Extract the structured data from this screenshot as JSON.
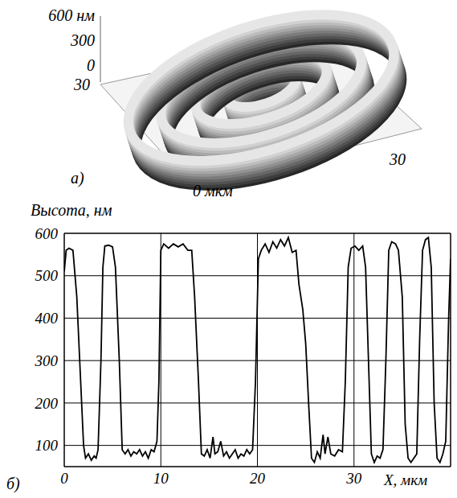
{
  "image": {
    "label": "a)",
    "z_ticks": [
      {
        "value": 600,
        "label": "600 нм"
      },
      300,
      0
    ],
    "z_lim": [
      0,
      600
    ],
    "x_ticks": [
      {
        "value": 0,
        "label": "0 мкм"
      },
      30
    ],
    "y_ticks": [
      30
    ]
  },
  "chart_data": {
    "type": "line",
    "label": "б)",
    "y_label": "Высота, нм",
    "x_label": "X, мкм",
    "color": "#000000",
    "grid": true,
    "xlim": [
      0,
      40
    ],
    "ylim": [
      50,
      600
    ],
    "xticks": [
      0,
      10,
      20,
      30
    ],
    "yticks": [
      100,
      200,
      300,
      400,
      500,
      600
    ],
    "x": [
      0,
      0.2,
      0.5,
      0.9,
      1.3,
      1.7,
      2.0,
      2.2,
      2.5,
      2.8,
      3.1,
      3.3,
      3.5,
      3.8,
      4.0,
      4.2,
      4.6,
      5.0,
      5.3,
      5.7,
      6.0,
      6.3,
      6.6,
      6.9,
      7.2,
      7.5,
      7.8,
      8.1,
      8.4,
      8.7,
      9.0,
      9.3,
      9.6,
      9.8,
      10.0,
      10.3,
      10.8,
      11.3,
      11.8,
      12.3,
      12.8,
      13.2,
      13.5,
      13.9,
      14.2,
      14.5,
      14.8,
      15.1,
      15.4,
      15.6,
      15.9,
      16.2,
      16.5,
      16.8,
      17.1,
      17.4,
      17.7,
      18.0,
      18.3,
      18.6,
      18.9,
      19.2,
      19.5,
      19.8,
      20.1,
      20.4,
      20.8,
      21.2,
      21.6,
      22.0,
      22.4,
      22.8,
      23.2,
      23.6,
      24.0,
      24.3,
      24.7,
      25.0,
      25.3,
      25.6,
      25.9,
      26.2,
      26.5,
      26.8,
      27.0,
      27.3,
      27.6,
      28.0,
      28.4,
      28.8,
      29.1,
      29.4,
      29.7,
      30.1,
      30.5,
      30.9,
      31.2,
      31.5,
      31.8,
      32.1,
      32.4,
      32.7,
      33.0,
      33.3,
      33.6,
      33.9,
      34.3,
      34.6,
      35.0,
      35.3,
      35.6,
      35.9,
      36.2,
      36.5,
      36.8,
      37.1,
      37.4,
      37.7,
      38.0,
      38.3,
      38.6,
      38.9,
      39.2,
      39.5,
      39.8,
      40.0
    ],
    "values": [
      510,
      560,
      565,
      560,
      450,
      250,
      100,
      70,
      80,
      65,
      75,
      70,
      90,
      300,
      520,
      570,
      572,
      568,
      520,
      300,
      90,
      80,
      90,
      75,
      85,
      80,
      90,
      75,
      85,
      70,
      90,
      85,
      110,
      250,
      560,
      575,
      565,
      575,
      568,
      575,
      560,
      560,
      450,
      250,
      80,
      75,
      90,
      70,
      120,
      80,
      85,
      110,
      75,
      85,
      70,
      80,
      90,
      70,
      80,
      75,
      90,
      80,
      90,
      250,
      540,
      560,
      575,
      555,
      580,
      565,
      585,
      570,
      590,
      555,
      560,
      480,
      420,
      340,
      200,
      70,
      60,
      85,
      70,
      125,
      80,
      120,
      80,
      75,
      90,
      85,
      250,
      520,
      565,
      570,
      560,
      570,
      520,
      300,
      80,
      60,
      75,
      70,
      90,
      300,
      560,
      580,
      575,
      560,
      450,
      150,
      70,
      60,
      70,
      80,
      350,
      560,
      585,
      590,
      520,
      200,
      70,
      60,
      80,
      110,
      400,
      540
    ]
  }
}
